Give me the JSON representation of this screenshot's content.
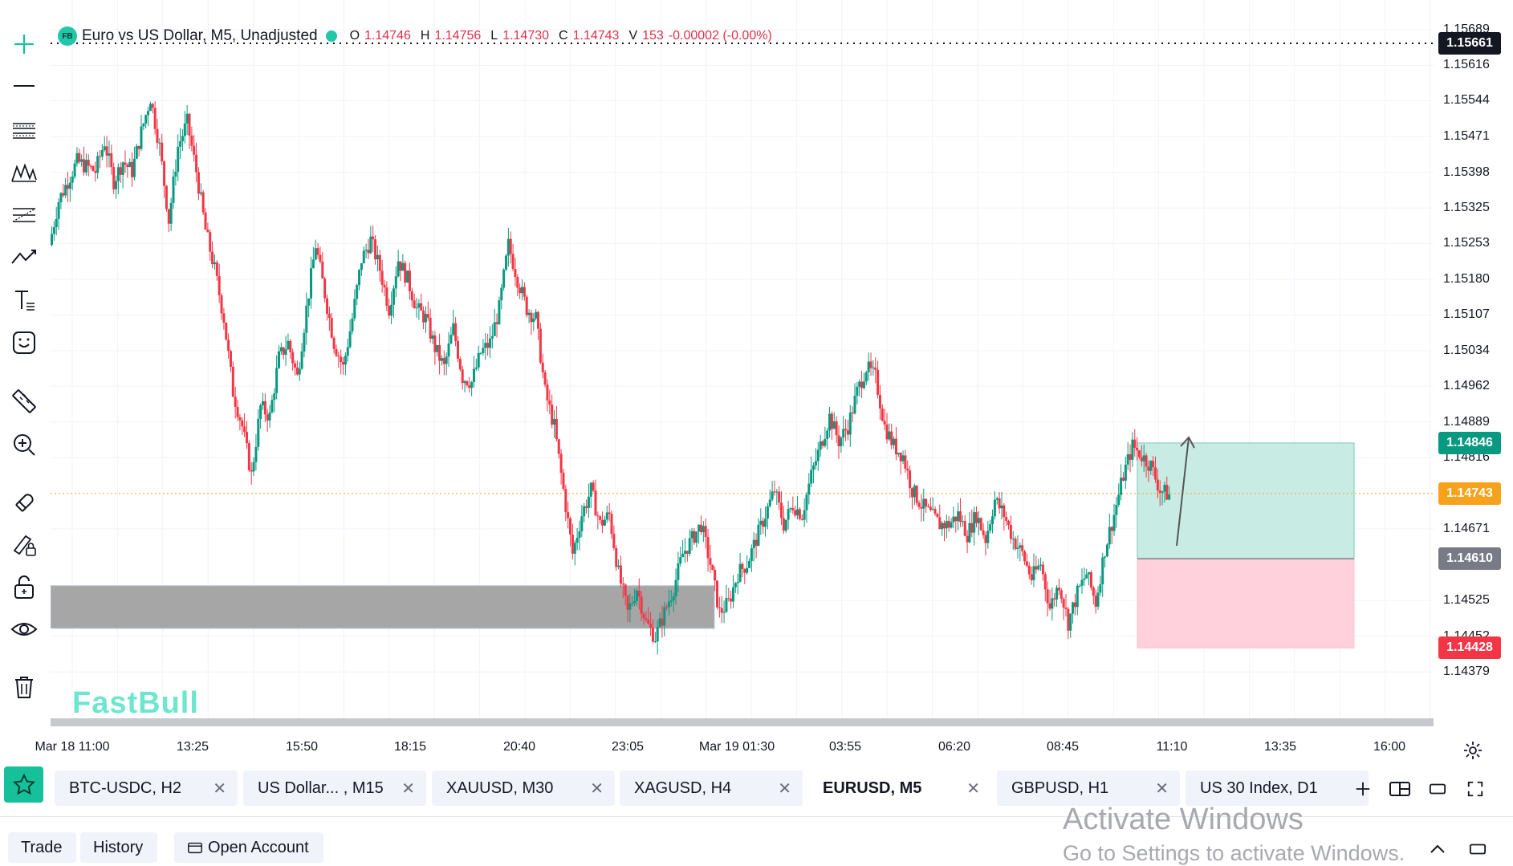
{
  "legend": {
    "badge": "FB",
    "title": "Euro vs US Dollar, M5, Unadjusted",
    "o_label": "O",
    "o_value": "1.14746",
    "h_label": "H",
    "h_value": "1.14756",
    "l_label": "L",
    "l_value": "1.14730",
    "c_label": "C",
    "c_value": "1.14743",
    "v_label": "V",
    "v_value": "153",
    "change": "-0.00002 (-0.00%)"
  },
  "watermark": "FastBull",
  "price_axis": {
    "ticks": [
      "1.15689",
      "1.15616",
      "1.15544",
      "1.15471",
      "1.15398",
      "1.15325",
      "1.15253",
      "1.15180",
      "1.15107",
      "1.15034",
      "1.14962",
      "1.14889",
      "1.14816",
      "1.14671",
      "1.14525",
      "1.14452",
      "1.14379"
    ],
    "badges": [
      {
        "name": "high-line-price-badge",
        "value": "1.15661",
        "color": "#131722"
      },
      {
        "name": "take-profit-badge",
        "value": "1.14846",
        "color": "#089981"
      },
      {
        "name": "last-price-badge",
        "value": "1.14743",
        "color": "#f7a21b"
      },
      {
        "name": "entry-price-badge",
        "value": "1.14610",
        "color": "#787b86"
      },
      {
        "name": "stop-loss-badge",
        "value": "1.14428",
        "color": "#f23645"
      }
    ]
  },
  "time_axis": [
    "Mar 18 11:00",
    "13:25",
    "15:50",
    "18:15",
    "20:40",
    "23:05",
    "Mar 19 01:30",
    "03:55",
    "06:20",
    "08:45",
    "11:10",
    "13:35",
    "16:00"
  ],
  "tabs": [
    {
      "label": "BTC-USDC, H2",
      "active": false
    },
    {
      "label": "US Dollar... , M15",
      "active": false
    },
    {
      "label": "XAUUSD, M30",
      "active": false
    },
    {
      "label": "XAGUSD, H4",
      "active": false
    },
    {
      "label": "EURUSD, M5",
      "active": true
    },
    {
      "label": "GBPUSD, H1",
      "active": false
    },
    {
      "label": "US 30 Index, D1",
      "active": false
    }
  ],
  "bottom_panel": {
    "trade": "Trade",
    "history": "History",
    "open_account": "Open Account"
  },
  "os_watermark": {
    "line1": "Activate Windows",
    "line2": "Go to Settings to activate Windows."
  },
  "colors": {
    "up": "#089981",
    "down": "#f23645",
    "accent": "#16c09b",
    "last_price": "#f7a21b",
    "zone": "#9e9e9e",
    "profit_zone": "#c8ece3",
    "loss_zone": "#ffd1dc"
  },
  "chart_data": {
    "type": "candlestick",
    "symbol": "EURUSD",
    "timeframe": "M5",
    "ylim": [
      1.1435,
      1.1571
    ],
    "close_path": [
      1.1525,
      1.1534,
      1.1538,
      1.1542,
      1.1541,
      1.154,
      1.1546,
      1.1538,
      1.1542,
      1.154,
      1.1548,
      1.1555,
      1.1545,
      1.153,
      1.1545,
      1.155,
      1.154,
      1.1528,
      1.152,
      1.151,
      1.1495,
      1.1488,
      1.1478,
      1.1492,
      1.149,
      1.1502,
      1.1505,
      1.1498,
      1.1512,
      1.1525,
      1.1515,
      1.1505,
      1.15,
      1.151,
      1.1522,
      1.1526,
      1.152,
      1.1512,
      1.1522,
      1.1518,
      1.1512,
      1.151,
      1.1504,
      1.15,
      1.1508,
      1.1498,
      1.1497,
      1.1503,
      1.1505,
      1.1512,
      1.1525,
      1.1518,
      1.1512,
      1.151,
      1.1495,
      1.1488,
      1.1475,
      1.1462,
      1.147,
      1.1475,
      1.1468,
      1.147,
      1.1458,
      1.145,
      1.1455,
      1.1448,
      1.1445,
      1.145,
      1.1455,
      1.1462,
      1.1465,
      1.1468,
      1.146,
      1.145,
      1.1452,
      1.1458,
      1.146,
      1.1465,
      1.147,
      1.1475,
      1.1468,
      1.1472,
      1.147,
      1.1478,
      1.1484,
      1.149,
      1.1485,
      1.1488,
      1.1495,
      1.15,
      1.1498,
      1.1488,
      1.1484,
      1.1482,
      1.1475,
      1.1472,
      1.147,
      1.1468,
      1.1468,
      1.147,
      1.1466,
      1.147,
      1.1465,
      1.1473,
      1.147,
      1.1465,
      1.1462,
      1.1457,
      1.146,
      1.1451,
      1.1456,
      1.1448,
      1.1454,
      1.1458,
      1.1452,
      1.1463,
      1.147,
      1.1478,
      1.1484,
      1.1482,
      1.148,
      1.1475,
      1.1474
    ],
    "zones": [
      {
        "name": "demand-zone",
        "y_top": 1.14555,
        "y_bottom": 1.14468
      },
      {
        "name": "take-profit-zone",
        "y_top": 1.14846,
        "y_bottom": 1.1461
      },
      {
        "name": "stop-loss-zone",
        "y_top": 1.1461,
        "y_bottom": 1.14428
      }
    ],
    "horizontal_lines": [
      {
        "name": "high-dotted-line",
        "y": 1.15661
      },
      {
        "name": "last-price-line",
        "y": 1.14743
      }
    ]
  }
}
